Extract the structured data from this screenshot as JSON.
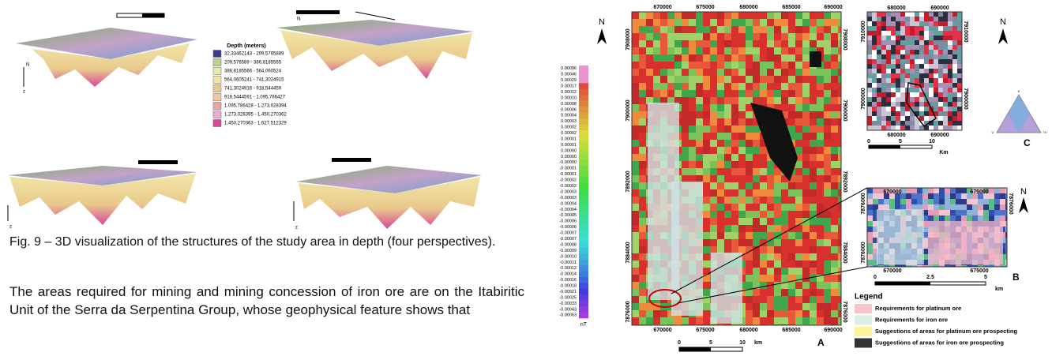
{
  "figure9": {
    "depth_legend": {
      "title": "Depth (meters)",
      "items": [
        "32,33462143 - 209,5765889",
        "209,576589 - 386,8185565",
        "386,8185566 - 564,060524",
        "564,0605241 - 741,3024915",
        "741,3024916 - 918,544459",
        "918,5444591 - 1.095,786427",
        "1.095,786428 - 1.273,028394",
        "1.273,028395 - 1.450,270362",
        "1.450,270363 - 1.627,512329"
      ]
    },
    "axis_labels": [
      "N",
      "z",
      "z",
      "N",
      "z"
    ],
    "caption": "Fig. 9 – 3D visualization of the structures of the study area in depth (four perspectives)."
  },
  "paragraph": "The areas required for mining and mining concession of iron ore are on the Itabiritic Unit of the Serra da Serpentina Group, whose geophysical feature shows that",
  "figure_right": {
    "north": "N",
    "colorbar": {
      "labels": [
        "0.00096",
        "0.00046",
        "0.00029",
        "0.00017",
        "0.00012",
        "0.00010",
        "0.00008",
        "0.00006",
        "0.00004",
        "0.00003",
        "0.00002",
        "0.00002",
        "0.00001",
        "0.00001",
        "0.00000",
        "0.00000",
        "-0.00000",
        "-0.00001",
        "-0.00001",
        "-0.00002",
        "-0.00002",
        "-0.00003",
        "-0.00003",
        "-0.00004",
        "-0.00004",
        "-0.00005",
        "-0.00006",
        "-0.00006",
        "-0.00007",
        "-0.00007",
        "-0.00008",
        "-0.00009",
        "-0.00010",
        "-0.00011",
        "-0.00012",
        "-0.00014",
        "-0.00016",
        "-0.00018",
        "-0.00021",
        "-0.00025",
        "-0.00033",
        "-0.00043",
        "-0.00063"
      ],
      "unit": "nT"
    },
    "map_a": {
      "x_ticks": [
        "670000",
        "675000",
        "680000",
        "685000",
        "690000"
      ],
      "y_ticks": [
        "7908000",
        "7900000",
        "7892000",
        "7884000",
        "7876000"
      ],
      "scale": [
        "0",
        "5",
        "10",
        "km"
      ],
      "label": "A"
    },
    "map_c": {
      "north": "N",
      "x_ticks": [
        "680000",
        "690000"
      ],
      "y_ticks": [
        "7910000",
        "7900000"
      ],
      "scale": [
        "0",
        "5",
        "10",
        "Km"
      ],
      "ternary": [
        "K",
        "U",
        "Th"
      ],
      "label": "C"
    },
    "map_b": {
      "north": "N",
      "x_ticks": [
        "670000",
        "675000"
      ],
      "y_ticks": [
        "7876000"
      ],
      "scale": [
        "0",
        "2.5",
        "5",
        "km"
      ],
      "label": "B"
    },
    "legend": {
      "title": "Legend",
      "items": [
        "Requirements for platinum ore",
        "Requirements for iron ore",
        "Suggestions of areas for platinum ore prospecting",
        "Suggestions of areas for iron ore prospecting"
      ]
    }
  }
}
